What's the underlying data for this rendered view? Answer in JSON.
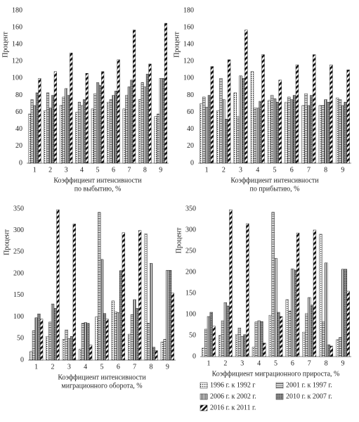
{
  "chart_data": [
    {
      "type": "bar",
      "ylabel": "Процент",
      "xlabel": [
        "Коэффициент интенсивности",
        "по выбытию, %"
      ],
      "categories": [
        "1",
        "2",
        "3",
        "4",
        "5",
        "6",
        "7",
        "8",
        "9"
      ],
      "ylim": [
        0,
        180
      ],
      "yticks": [
        0,
        20,
        40,
        60,
        80,
        100,
        120,
        140,
        160,
        180
      ],
      "series": [
        {
          "values": [
            58,
            62,
            68,
            60,
            64,
            72,
            64,
            75,
            55
          ]
        },
        {
          "values": [
            75,
            83,
            78,
            72,
            82,
            75,
            80,
            95,
            58
          ]
        },
        {
          "values": [
            68,
            65,
            88,
            68,
            95,
            80,
            90,
            90,
            100
          ]
        },
        {
          "values": [
            83,
            80,
            80,
            75,
            92,
            85,
            98,
            105,
            100
          ]
        },
        {
          "values": [
            100,
            108,
            130,
            106,
            108,
            122,
            157,
            117,
            165
          ]
        }
      ]
    },
    {
      "type": "bar",
      "ylabel": "Процент",
      "xlabel": [
        "Коэффициент интенсивности",
        "по прибытию, %"
      ],
      "categories": [
        "1",
        "2",
        "3",
        "4",
        "5",
        "6",
        "7",
        "8",
        "9"
      ],
      "ylim": [
        0,
        180
      ],
      "yticks": [
        0,
        20,
        40,
        60,
        80,
        100,
        120,
        140,
        160,
        180
      ],
      "series": [
        {
          "values": [
            70,
            62,
            83,
            108,
            74,
            72,
            68,
            68,
            77
          ]
        },
        {
          "values": [
            78,
            100,
            55,
            65,
            80,
            78,
            82,
            68,
            75
          ]
        },
        {
          "values": [
            66,
            75,
            103,
            65,
            76,
            75,
            68,
            75,
            68
          ]
        },
        {
          "values": [
            80,
            52,
            100,
            73,
            72,
            80,
            80,
            72,
            72
          ]
        },
        {
          "values": [
            114,
            122,
            157,
            128,
            98,
            116,
            128,
            116,
            110
          ]
        }
      ]
    },
    {
      "type": "bar",
      "ylabel": "Процент",
      "xlabel": [
        "Коэффициент интенсивности",
        "миграционного оборота, %"
      ],
      "categories": [
        "1",
        "2",
        "3",
        "4",
        "5",
        "6",
        "7",
        "8",
        "9"
      ],
      "ylim": [
        0,
        350
      ],
      "yticks": [
        0,
        50,
        100,
        150,
        200,
        250,
        300,
        350
      ],
      "series": [
        {
          "values": [
            20,
            55,
            48,
            25,
            100,
            137,
            60,
            292,
            42
          ]
        },
        {
          "values": [
            68,
            88,
            70,
            85,
            342,
            112,
            105,
            85,
            48
          ]
        },
        {
          "values": [
            98,
            130,
            50,
            87,
            233,
            110,
            140,
            224,
            208
          ]
        },
        {
          "values": [
            107,
            120,
            55,
            85,
            108,
            207,
            120,
            30,
            208
          ]
        },
        {
          "values": [
            95,
            348,
            315,
            35,
            95,
            295,
            300,
            22,
            155
          ]
        }
      ]
    },
    {
      "type": "bar",
      "ylabel": "Процент",
      "xlabel": [
        "Коэффициент миграционного прироста, %"
      ],
      "categories": [
        "1",
        "2",
        "3",
        "4",
        "5",
        "6",
        "7",
        "8",
        "9"
      ],
      "ylim": [
        0,
        350
      ],
      "yticks": [
        0,
        50,
        100,
        150,
        200,
        250,
        300,
        350
      ],
      "series": [
        {
          "values": [
            20,
            50,
            52,
            22,
            98,
            135,
            58,
            290,
            40
          ]
        },
        {
          "values": [
            65,
            85,
            68,
            82,
            342,
            108,
            102,
            82,
            45
          ]
        },
        {
          "values": [
            95,
            128,
            48,
            85,
            233,
            208,
            140,
            222,
            207
          ]
        },
        {
          "values": [
            105,
            120,
            52,
            83,
            105,
            205,
            122,
            28,
            207
          ]
        },
        {
          "values": [
            72,
            348,
            315,
            32,
            95,
            293,
            300,
            25,
            155
          ]
        }
      ]
    }
  ],
  "legend": {
    "entries": [
      "1996 г. к 1992 г",
      "2001 г. к 1997 г.",
      "2006 г. к 2002 г.",
      "2010 г. к 2007 г.",
      "2016 г. к 2011 г."
    ]
  },
  "color": "#222222"
}
